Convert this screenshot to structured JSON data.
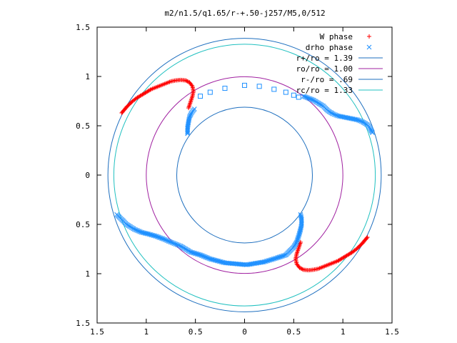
{
  "chart_data": {
    "type": "scatter",
    "title": "m2/n1.5/q1.65/r-+.50-j257/M5,0/512",
    "xlabel": "",
    "ylabel": "",
    "xlim": [
      -1.5,
      1.5
    ],
    "ylim": [
      -1.5,
      1.5
    ],
    "x_ticks": [
      {
        "value": -1.5,
        "label": "1.5"
      },
      {
        "value": -1.0,
        "label": "1"
      },
      {
        "value": -0.5,
        "label": "0.5"
      },
      {
        "value": 0.0,
        "label": "0"
      },
      {
        "value": 0.5,
        "label": "0.5"
      },
      {
        "value": 1.0,
        "label": "1"
      },
      {
        "value": 1.5,
        "label": "1.5"
      }
    ],
    "y_ticks": [
      {
        "value": 1.5,
        "label": "1.5"
      },
      {
        "value": 1.0,
        "label": "1"
      },
      {
        "value": 0.5,
        "label": "0.5"
      },
      {
        "value": 0.0,
        "label": "0"
      },
      {
        "value": -0.5,
        "label": "0.5"
      },
      {
        "value": -1.0,
        "label": "1"
      },
      {
        "value": -1.5,
        "label": "1.5"
      }
    ],
    "grid": false,
    "legend_position": "top-right",
    "series": [
      {
        "name": "W phase",
        "kind": "points",
        "marker": "plus",
        "color": "#ff0000",
        "arms": [
          [
            [
              -1.25,
              0.63
            ],
            [
              -1.2,
              0.69
            ],
            [
              -1.15,
              0.74
            ],
            [
              -1.1,
              0.78
            ],
            [
              -1.05,
              0.81
            ],
            [
              -1.0,
              0.84
            ],
            [
              -0.95,
              0.87
            ],
            [
              -0.9,
              0.89
            ],
            [
              -0.85,
              0.91
            ],
            [
              -0.8,
              0.93
            ],
            [
              -0.75,
              0.95
            ],
            [
              -0.7,
              0.96
            ],
            [
              -0.65,
              0.965
            ],
            [
              -0.6,
              0.96
            ],
            [
              -0.56,
              0.94
            ],
            [
              -0.53,
              0.9
            ],
            [
              -0.52,
              0.85
            ],
            [
              -0.53,
              0.8
            ],
            [
              -0.55,
              0.74
            ],
            [
              -0.57,
              0.68
            ]
          ],
          [
            [
              1.25,
              -0.63
            ],
            [
              1.2,
              -0.69
            ],
            [
              1.15,
              -0.74
            ],
            [
              1.1,
              -0.78
            ],
            [
              1.05,
              -0.81
            ],
            [
              1.0,
              -0.84
            ],
            [
              0.95,
              -0.87
            ],
            [
              0.9,
              -0.89
            ],
            [
              0.85,
              -0.91
            ],
            [
              0.8,
              -0.93
            ],
            [
              0.75,
              -0.95
            ],
            [
              0.7,
              -0.96
            ],
            [
              0.65,
              -0.965
            ],
            [
              0.6,
              -0.96
            ],
            [
              0.56,
              -0.94
            ],
            [
              0.53,
              -0.9
            ],
            [
              0.52,
              -0.85
            ],
            [
              0.53,
              -0.8
            ],
            [
              0.55,
              -0.74
            ],
            [
              0.57,
              -0.68
            ]
          ]
        ]
      },
      {
        "name": "drho phase",
        "kind": "points",
        "marker": "cross",
        "color": "#1e90ff",
        "arms": [
          [
            [
              -0.58,
              0.42
            ],
            [
              -0.58,
              0.48
            ],
            [
              -0.57,
              0.54
            ],
            [
              -0.56,
              0.59
            ],
            [
              -0.54,
              0.63
            ],
            [
              -0.51,
              0.67
            ]
          ],
          [
            [
              0.6,
              0.8
            ],
            [
              0.7,
              0.76
            ],
            [
              0.8,
              0.7
            ],
            [
              0.85,
              0.65
            ],
            [
              0.9,
              0.62
            ],
            [
              0.95,
              0.6
            ],
            [
              1.0,
              0.59
            ],
            [
              1.05,
              0.58
            ],
            [
              1.1,
              0.57
            ],
            [
              1.15,
              0.56
            ],
            [
              1.2,
              0.54
            ],
            [
              1.25,
              0.51
            ],
            [
              1.28,
              0.47
            ],
            [
              1.3,
              0.43
            ]
          ],
          [
            [
              -1.3,
              -0.4
            ],
            [
              -1.25,
              -0.45
            ],
            [
              -1.2,
              -0.5
            ],
            [
              -1.12,
              -0.55
            ],
            [
              -1.05,
              -0.58
            ],
            [
              -0.97,
              -0.6
            ],
            [
              -0.9,
              -0.62
            ],
            [
              -0.82,
              -0.65
            ],
            [
              -0.75,
              -0.68
            ],
            [
              -0.7,
              -0.7
            ],
            [
              -0.65,
              -0.72
            ],
            [
              -0.6,
              -0.75
            ],
            [
              -0.55,
              -0.78
            ],
            [
              -0.45,
              -0.81
            ],
            [
              -0.35,
              -0.85
            ],
            [
              -0.2,
              -0.89
            ],
            [
              0.02,
              -0.91
            ],
            [
              0.2,
              -0.88
            ],
            [
              0.33,
              -0.84
            ],
            [
              0.42,
              -0.81
            ],
            [
              0.46,
              -0.77
            ],
            [
              0.5,
              -0.73
            ],
            [
              0.53,
              -0.68
            ],
            [
              0.55,
              -0.62
            ],
            [
              0.57,
              -0.55
            ],
            [
              0.58,
              -0.5
            ],
            [
              0.58,
              -0.45
            ],
            [
              0.57,
              -0.4
            ]
          ]
        ]
      },
      {
        "name": "drho phase squares",
        "kind": "points",
        "marker": "square",
        "color": "#1e90ff",
        "arms": [
          [
            [
              -0.45,
              0.8
            ],
            [
              -0.35,
              0.84
            ],
            [
              -0.2,
              0.88
            ],
            [
              0.0,
              0.91
            ],
            [
              0.15,
              0.9
            ],
            [
              0.3,
              0.87
            ],
            [
              0.42,
              0.84
            ],
            [
              0.5,
              0.81
            ],
            [
              0.55,
              0.79
            ]
          ]
        ]
      },
      {
        "name": "r+/ro = 1.39",
        "kind": "circle",
        "radius": 1.39,
        "color": "#1e6fbf"
      },
      {
        "name": "ro/ro = 1.00",
        "kind": "circle",
        "radius": 1.0,
        "color": "#a020a0"
      },
      {
        "name": "r-/ro = .69",
        "kind": "circle",
        "radius": 0.69,
        "color": "#1e6fbf"
      },
      {
        "name": "rc/ro = 1.33",
        "kind": "circle",
        "radius": 1.33,
        "color": "#20c0c0"
      }
    ],
    "legend": [
      {
        "label": "W phase",
        "symbol": "plus",
        "color": "#ff0000"
      },
      {
        "label": "drho phase",
        "symbol": "cross",
        "color": "#1e90ff"
      },
      {
        "label": "r+/ro = 1.39",
        "symbol": "line",
        "color": "#1e6fbf"
      },
      {
        "label": "ro/ro = 1.00",
        "symbol": "line",
        "color": "#a020a0"
      },
      {
        "label": "r-/ro = .69",
        "symbol": "line",
        "color": "#1e6fbf"
      },
      {
        "label": "rc/ro = 1.33",
        "symbol": "line",
        "color": "#20c0c0"
      }
    ]
  }
}
